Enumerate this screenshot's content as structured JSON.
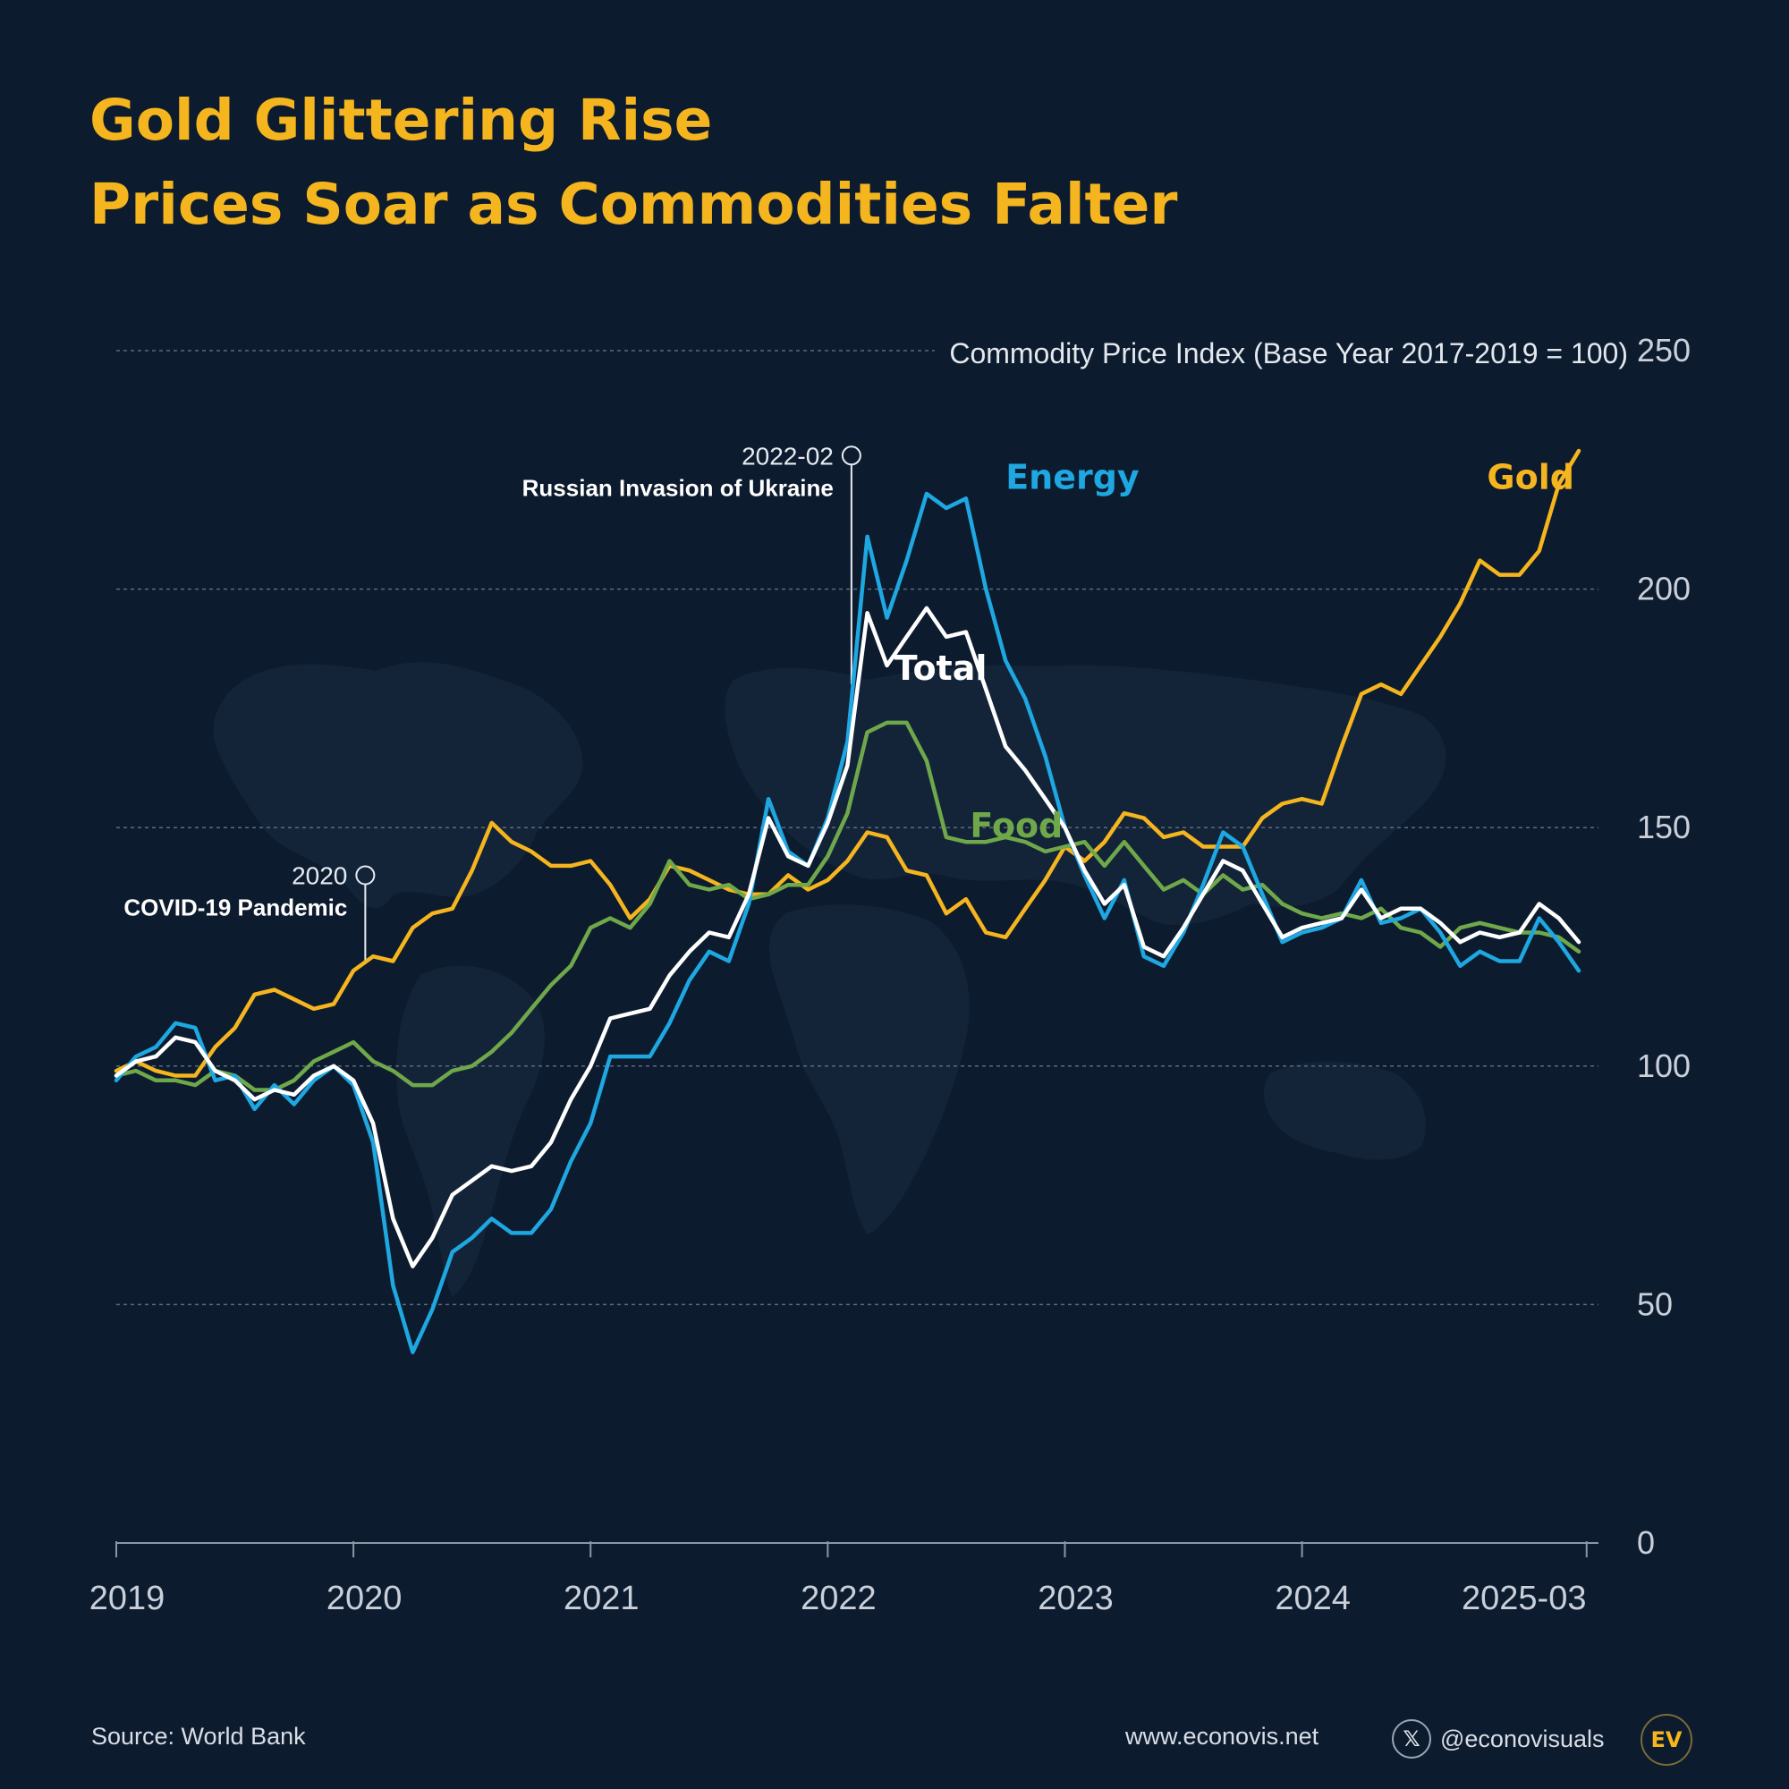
{
  "title": {
    "line1": "Gold Glittering Rise",
    "line2": "Prices Soar as Commodities Falter"
  },
  "footer": {
    "source": "Source: World Bank",
    "website": "www.econovis.net",
    "social_handle": "@econovisuals",
    "x_icon": "x-logo-icon",
    "logo_text": "EV"
  },
  "colors": {
    "background": "#0d1b2e",
    "title": "#f5b51f",
    "gold": "#f5b51f",
    "energy": "#1ea7e1",
    "total": "#ffffff",
    "food": "#6fa84a",
    "grid": "#5a6b80",
    "axis_text": "#c9d0da"
  },
  "chart_data": {
    "type": "line",
    "title": "Gold Glittering Rise — Prices Soar as Commodities Falter",
    "ylabel": "Commodity Price Index (Base Year 2017-2019 = 100)",
    "xlabel": "",
    "ylim": [
      0,
      250
    ],
    "yticks": [
      0,
      50,
      100,
      150,
      200,
      250
    ],
    "xlim": [
      2019.0,
      2025.25
    ],
    "xticks": [
      {
        "value": 2019,
        "label": "2019"
      },
      {
        "value": 2020,
        "label": "2020"
      },
      {
        "value": 2021,
        "label": "2021"
      },
      {
        "value": 2022,
        "label": "2022"
      },
      {
        "value": 2023,
        "label": "2023"
      },
      {
        "value": 2024,
        "label": "2024"
      },
      {
        "value": 2025.2,
        "label": "2025-03"
      }
    ],
    "grid": true,
    "series": [
      {
        "name": "Gold",
        "key": "gold",
        "label_text": "Gold",
        "label_at": [
          2024.78,
          221
        ],
        "x": [
          2019.0,
          2019.083,
          2019.167,
          2019.25,
          2019.333,
          2019.417,
          2019.5,
          2019.583,
          2019.667,
          2019.75,
          2019.833,
          2019.917,
          2020.0,
          2020.083,
          2020.167,
          2020.25,
          2020.333,
          2020.417,
          2020.5,
          2020.583,
          2020.667,
          2020.75,
          2020.833,
          2020.917,
          2021.0,
          2021.083,
          2021.167,
          2021.25,
          2021.333,
          2021.417,
          2021.5,
          2021.583,
          2021.667,
          2021.75,
          2021.833,
          2021.917,
          2022.0,
          2022.083,
          2022.167,
          2022.25,
          2022.333,
          2022.417,
          2022.5,
          2022.583,
          2022.667,
          2022.75,
          2022.833,
          2022.917,
          2023.0,
          2023.083,
          2023.167,
          2023.25,
          2023.333,
          2023.417,
          2023.5,
          2023.583,
          2023.667,
          2023.75,
          2023.833,
          2023.917,
          2024.0,
          2024.083,
          2024.167,
          2024.25,
          2024.333,
          2024.417,
          2024.5,
          2024.583,
          2024.667,
          2024.75,
          2024.833,
          2024.917,
          2025.0,
          2025.083,
          2025.167
        ],
        "values": [
          99,
          101,
          99,
          98,
          98,
          104,
          108,
          115,
          116,
          114,
          112,
          113,
          120,
          123,
          122,
          129,
          132,
          133,
          141,
          151,
          147,
          145,
          142,
          142,
          143,
          138,
          131,
          135,
          142,
          141,
          139,
          137,
          136,
          136,
          140,
          137,
          139,
          143,
          149,
          148,
          141,
          140,
          132,
          135,
          128,
          127,
          133,
          139,
          146,
          143,
          147,
          153,
          152,
          148,
          149,
          146,
          146,
          146,
          152,
          155,
          156,
          155,
          167,
          178,
          180,
          178,
          184,
          190,
          197,
          206,
          203,
          203,
          208,
          222,
          229
        ]
      },
      {
        "name": "Energy",
        "key": "energy",
        "label_text": "Energy",
        "label_at": [
          2022.75,
          221
        ],
        "x": [
          2019.0,
          2019.083,
          2019.167,
          2019.25,
          2019.333,
          2019.417,
          2019.5,
          2019.583,
          2019.667,
          2019.75,
          2019.833,
          2019.917,
          2020.0,
          2020.083,
          2020.167,
          2020.25,
          2020.333,
          2020.417,
          2020.5,
          2020.583,
          2020.667,
          2020.75,
          2020.833,
          2020.917,
          2021.0,
          2021.083,
          2021.167,
          2021.25,
          2021.333,
          2021.417,
          2021.5,
          2021.583,
          2021.667,
          2021.75,
          2021.833,
          2021.917,
          2022.0,
          2022.083,
          2022.167,
          2022.25,
          2022.333,
          2022.417,
          2022.5,
          2022.583,
          2022.667,
          2022.75,
          2022.833,
          2022.917,
          2023.0,
          2023.083,
          2023.167,
          2023.25,
          2023.333,
          2023.417,
          2023.5,
          2023.583,
          2023.667,
          2023.75,
          2023.833,
          2023.917,
          2024.0,
          2024.083,
          2024.167,
          2024.25,
          2024.333,
          2024.417,
          2024.5,
          2024.583,
          2024.667,
          2024.75,
          2024.833,
          2024.917,
          2025.0,
          2025.083,
          2025.167
        ],
        "values": [
          97,
          102,
          104,
          109,
          108,
          97,
          98,
          91,
          96,
          92,
          97,
          100,
          96,
          84,
          54,
          40,
          49,
          61,
          64,
          68,
          65,
          65,
          70,
          80,
          88,
          102,
          102,
          102,
          109,
          118,
          124,
          122,
          134,
          156,
          145,
          142,
          152,
          168,
          211,
          194,
          206,
          220,
          217,
          219,
          200,
          185,
          177,
          165,
          150,
          140,
          131,
          139,
          123,
          121,
          128,
          138,
          149,
          146,
          136,
          126,
          128,
          129,
          131,
          139,
          130,
          131,
          133,
          128,
          121,
          124,
          122,
          122,
          131,
          126,
          120
        ]
      },
      {
        "name": "Total",
        "key": "total",
        "label_text": "Total",
        "label_at": [
          2022.28,
          181
        ],
        "x": [
          2019.0,
          2019.083,
          2019.167,
          2019.25,
          2019.333,
          2019.417,
          2019.5,
          2019.583,
          2019.667,
          2019.75,
          2019.833,
          2019.917,
          2020.0,
          2020.083,
          2020.167,
          2020.25,
          2020.333,
          2020.417,
          2020.5,
          2020.583,
          2020.667,
          2020.75,
          2020.833,
          2020.917,
          2021.0,
          2021.083,
          2021.167,
          2021.25,
          2021.333,
          2021.417,
          2021.5,
          2021.583,
          2021.667,
          2021.75,
          2021.833,
          2021.917,
          2022.0,
          2022.083,
          2022.167,
          2022.25,
          2022.333,
          2022.417,
          2022.5,
          2022.583,
          2022.667,
          2022.75,
          2022.833,
          2022.917,
          2023.0,
          2023.083,
          2023.167,
          2023.25,
          2023.333,
          2023.417,
          2023.5,
          2023.583,
          2023.667,
          2023.75,
          2023.833,
          2023.917,
          2024.0,
          2024.083,
          2024.167,
          2024.25,
          2024.333,
          2024.417,
          2024.5,
          2024.583,
          2024.667,
          2024.75,
          2024.833,
          2024.917,
          2025.0,
          2025.083,
          2025.167
        ],
        "values": [
          98,
          101,
          102,
          106,
          105,
          99,
          97,
          93,
          95,
          94,
          98,
          100,
          97,
          88,
          68,
          58,
          64,
          73,
          76,
          79,
          78,
          79,
          84,
          93,
          100,
          110,
          111,
          112,
          119,
          124,
          128,
          127,
          136,
          152,
          144,
          142,
          151,
          163,
          195,
          184,
          190,
          196,
          190,
          191,
          179,
          167,
          162,
          156,
          150,
          141,
          134,
          138,
          125,
          123,
          129,
          136,
          143,
          141,
          134,
          127,
          129,
          130,
          131,
          137,
          131,
          133,
          133,
          130,
          126,
          128,
          127,
          128,
          134,
          131,
          126
        ]
      },
      {
        "name": "Food",
        "key": "food",
        "label_text": "Food",
        "label_at": [
          2022.6,
          148
        ],
        "x": [
          2019.0,
          2019.083,
          2019.167,
          2019.25,
          2019.333,
          2019.417,
          2019.5,
          2019.583,
          2019.667,
          2019.75,
          2019.833,
          2019.917,
          2020.0,
          2020.083,
          2020.167,
          2020.25,
          2020.333,
          2020.417,
          2020.5,
          2020.583,
          2020.667,
          2020.75,
          2020.833,
          2020.917,
          2021.0,
          2021.083,
          2021.167,
          2021.25,
          2021.333,
          2021.417,
          2021.5,
          2021.583,
          2021.667,
          2021.75,
          2021.833,
          2021.917,
          2022.0,
          2022.083,
          2022.167,
          2022.25,
          2022.333,
          2022.417,
          2022.5,
          2022.583,
          2022.667,
          2022.75,
          2022.833,
          2022.917,
          2023.0,
          2023.083,
          2023.167,
          2023.25,
          2023.333,
          2023.417,
          2023.5,
          2023.583,
          2023.667,
          2023.75,
          2023.833,
          2023.917,
          2024.0,
          2024.083,
          2024.167,
          2024.25,
          2024.333,
          2024.417,
          2024.5,
          2024.583,
          2024.667,
          2024.75,
          2024.833,
          2024.917,
          2025.0,
          2025.083,
          2025.167
        ],
        "values": [
          98,
          99,
          97,
          97,
          96,
          99,
          98,
          95,
          95,
          97,
          101,
          103,
          105,
          101,
          99,
          96,
          96,
          99,
          100,
          103,
          107,
          112,
          117,
          121,
          129,
          131,
          129,
          134,
          143,
          138,
          137,
          138,
          135,
          136,
          138,
          138,
          144,
          153,
          170,
          172,
          172,
          164,
          148,
          147,
          147,
          148,
          147,
          145,
          146,
          147,
          142,
          147,
          142,
          137,
          139,
          136,
          140,
          137,
          138,
          134,
          132,
          131,
          132,
          131,
          133,
          129,
          128,
          125,
          129,
          130,
          129,
          128,
          128,
          127,
          124
        ]
      }
    ],
    "annotations": [
      {
        "key": "invasion",
        "x": 2022.1,
        "date_label": "2022-02",
        "event_label": "Russian Invasion of Ukraine",
        "y_top": 228,
        "y_bottom": 180
      },
      {
        "key": "covid",
        "x": 2020.05,
        "date_label": "2020",
        "event_label": "COVID-19 Pandemic",
        "y_top": 140,
        "y_bottom": 122
      }
    ]
  }
}
